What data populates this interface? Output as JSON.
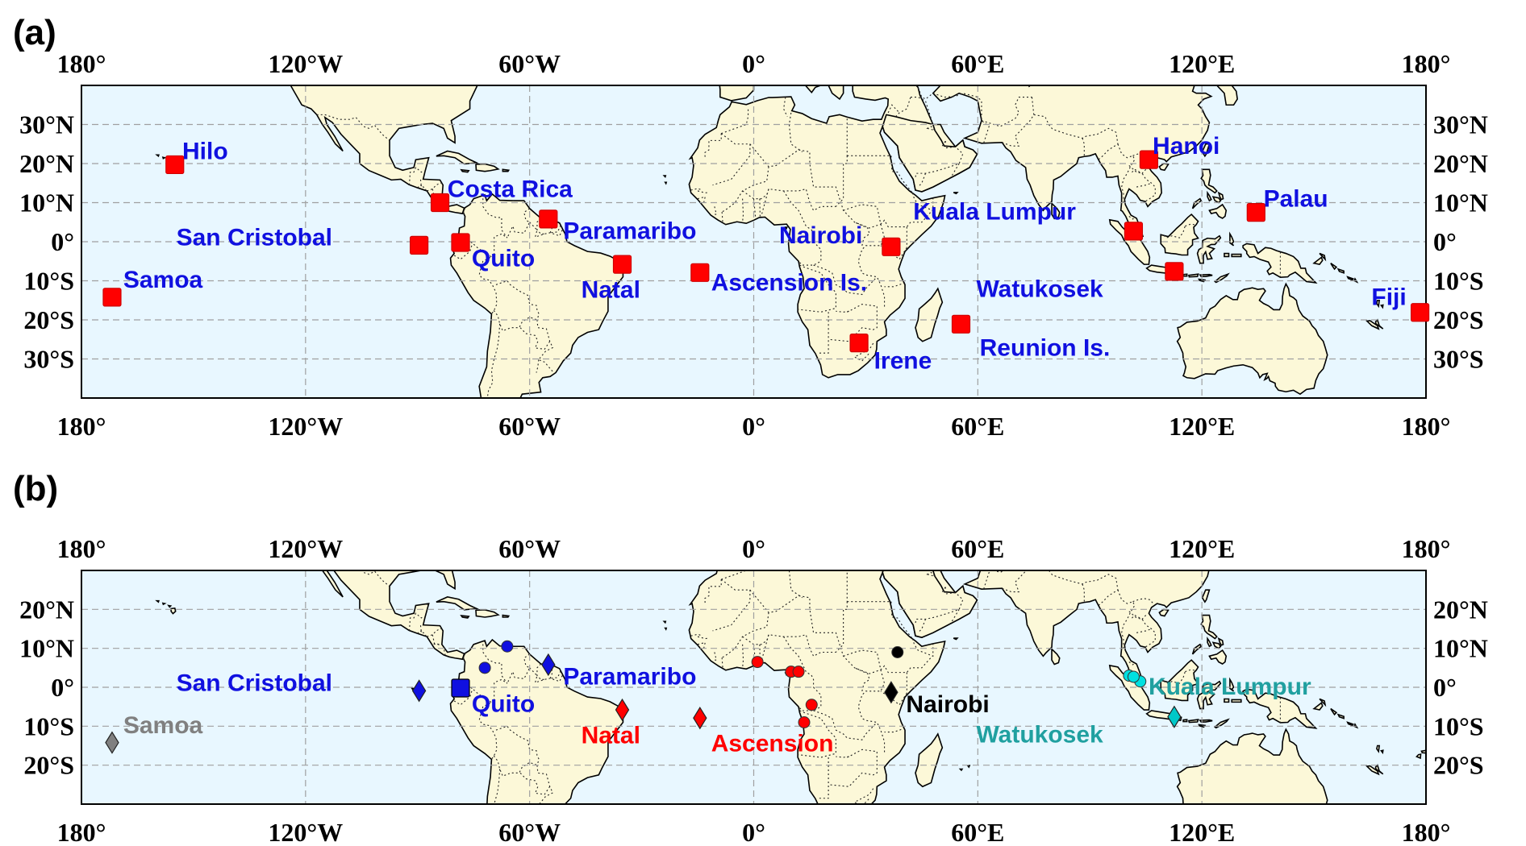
{
  "panels": [
    {
      "letter": "(a)",
      "lat_top": 40,
      "lat_bottom": -40,
      "x_ticks": [
        "180°",
        "120°W",
        "60°W",
        "0°",
        "60°E",
        "120°E",
        "180°"
      ],
      "y_ticks": [
        {
          "lat": 30,
          "label": "30°N"
        },
        {
          "lat": 20,
          "label": "20°N"
        },
        {
          "lat": 10,
          "label": "10°N"
        },
        {
          "lat": 0,
          "label": "0°"
        },
        {
          "lat": -10,
          "label": "10°S"
        },
        {
          "lat": -20,
          "label": "20°S"
        },
        {
          "lat": -30,
          "label": "30°S"
        }
      ],
      "stations": [
        {
          "name": "Hilo",
          "lon": -155,
          "lat": 19.7,
          "marker": "square",
          "color": "#ff0000",
          "label_color": "#1010e0",
          "label_dlon": 2,
          "label_dlat": 3.5
        },
        {
          "name": "Costa Rica",
          "lon": -84,
          "lat": 10,
          "marker": "square",
          "color": "#ff0000",
          "label_color": "#1010e0",
          "label_dlon": 2,
          "label_dlat": 3.5
        },
        {
          "name": "San Cristobal",
          "lon": -89.6,
          "lat": -0.9,
          "marker": "square",
          "color": "#ff0000",
          "label_color": "#1010e0",
          "label_dlon": -65,
          "label_dlat": 2
        },
        {
          "name": "Quito",
          "lon": -78.5,
          "lat": -0.2,
          "marker": "square",
          "color": "#ff0000",
          "label_color": "#1010e0",
          "label_dlon": 3,
          "label_dlat": -4
        },
        {
          "name": "Paramaribo",
          "lon": -55,
          "lat": 5.8,
          "marker": "square",
          "color": "#ff0000",
          "label_color": "#1010e0",
          "label_dlon": 4,
          "label_dlat": -3
        },
        {
          "name": "Samoa",
          "lon": -171.8,
          "lat": -14.2,
          "marker": "square",
          "color": "#ff0000",
          "label_color": "#1010e0",
          "label_dlon": 3,
          "label_dlat": 4.5
        },
        {
          "name": "Natal",
          "lon": -35.2,
          "lat": -5.8,
          "marker": "square",
          "color": "#ff0000",
          "label_color": "#1010e0",
          "label_dlon": -11,
          "label_dlat": -6.5
        },
        {
          "name": "Ascension Is.",
          "lon": -14.4,
          "lat": -7.9,
          "marker": "square",
          "color": "#ff0000",
          "label_color": "#1010e0",
          "label_dlon": 3,
          "label_dlat": -2.5
        },
        {
          "name": "Nairobi",
          "lon": 36.8,
          "lat": -1.3,
          "marker": "square",
          "color": "#ff0000",
          "label_color": "#1010e0",
          "label_dlon": -30,
          "label_dlat": 3
        },
        {
          "name": "Irene",
          "lon": 28.2,
          "lat": -25.9,
          "marker": "square",
          "color": "#ff0000",
          "label_color": "#1010e0",
          "label_dlon": 4,
          "label_dlat": -4.5
        },
        {
          "name": "Reunion Is.",
          "lon": 55.5,
          "lat": -21.1,
          "marker": "square",
          "color": "#ff0000",
          "label_color": "#1010e0",
          "label_dlon": 5,
          "label_dlat": -6
        },
        {
          "name": "Watukosek",
          "lon": 112.6,
          "lat": -7.6,
          "marker": "square",
          "color": "#ff0000",
          "label_color": "#1010e0",
          "label_dlon": -53,
          "label_dlat": -4.5
        },
        {
          "name": "Kuala Lumpur",
          "lon": 101.7,
          "lat": 2.7,
          "marker": "square",
          "color": "#ff0000",
          "label_color": "#1010e0",
          "label_dlon": -59,
          "label_dlat": 5
        },
        {
          "name": "Hanoi",
          "lon": 105.8,
          "lat": 21,
          "marker": "square",
          "color": "#ff0000",
          "label_color": "#1010e0",
          "label_dlon": 1,
          "label_dlat": 3.5
        },
        {
          "name": "Palau",
          "lon": 134.5,
          "lat": 7.5,
          "marker": "square",
          "color": "#ff0000",
          "label_color": "#1010e0",
          "label_dlon": 2,
          "label_dlat": 3.5
        },
        {
          "name": "Fiji",
          "lon": 178.4,
          "lat": -18.1,
          "marker": "square",
          "color": "#ff0000",
          "label_color": "#1010e0",
          "label_dlon": -13,
          "label_dlat": 4
        }
      ]
    },
    {
      "letter": "(b)",
      "lat_top": 30,
      "lat_bottom": -30,
      "x_ticks": [
        "180°",
        "120°W",
        "60°W",
        "0°",
        "60°E",
        "120°E",
        "180°"
      ],
      "y_ticks": [
        {
          "lat": 20,
          "label": "20°N"
        },
        {
          "lat": 10,
          "label": "10°N"
        },
        {
          "lat": 0,
          "label": "0°"
        },
        {
          "lat": -10,
          "label": "10°S"
        },
        {
          "lat": -20,
          "label": "20°S"
        }
      ],
      "stations": [
        {
          "name": "San Cristobal",
          "lon": -89.6,
          "lat": -0.9,
          "marker": "diamond",
          "color": "#1010e0",
          "label_color": "#1010e0",
          "label_dlon": -65,
          "label_dlat": 2
        },
        {
          "name": "Quito",
          "lon": -78.5,
          "lat": -0.2,
          "marker": "square",
          "color": "#1010e0",
          "label_color": "#1010e0",
          "label_dlon": 3,
          "label_dlat": -4
        },
        {
          "name": "Paramaribo",
          "lon": -55,
          "lat": 5.8,
          "marker": "diamond",
          "color": "#1010e0",
          "label_color": "#1010e0",
          "label_dlon": 4,
          "label_dlat": -3
        },
        {
          "name": "Samoa",
          "lon": -171.8,
          "lat": -14.2,
          "marker": "diamond",
          "color": "#808080",
          "label_color": "#808080",
          "label_dlon": 3,
          "label_dlat": 4.5
        },
        {
          "name": "Natal",
          "lon": -35.2,
          "lat": -5.8,
          "marker": "diamond",
          "color": "#ff0000",
          "label_color": "#ff0000",
          "label_dlon": -11,
          "label_dlat": -6.5
        },
        {
          "name": "Ascension",
          "lon": -14.4,
          "lat": -7.9,
          "marker": "diamond",
          "color": "#ff0000",
          "label_color": "#ff0000",
          "label_dlon": 3,
          "label_dlat": -6.5
        },
        {
          "name": "Nairobi",
          "lon": 36.8,
          "lat": -1.3,
          "marker": "diamond",
          "color": "#000000",
          "label_color": "#000000",
          "label_dlon": 4,
          "label_dlat": -3
        },
        {
          "name": "Watukosek",
          "lon": 112.6,
          "lat": -7.6,
          "marker": "diamond",
          "color": "#00c8c8",
          "label_color": "#20a0a0",
          "label_dlon": -53,
          "label_dlat": -4.5
        },
        {
          "name": "Kuala Lumpur",
          "lon": 101.7,
          "lat": 2.7,
          "marker": "circle",
          "color": "#00e0e0",
          "label_color": "#20a0a0",
          "label_dlon": 4,
          "label_dlat": -2.5
        }
      ],
      "extra_points": [
        {
          "lon": -72,
          "lat": 5,
          "color": "#1010e0"
        },
        {
          "lon": -66,
          "lat": 10.5,
          "color": "#1010e0"
        },
        {
          "lon": 1,
          "lat": 6.5,
          "color": "#ff0000"
        },
        {
          "lon": 10,
          "lat": 4,
          "color": "#ff0000"
        },
        {
          "lon": 12,
          "lat": 4,
          "color": "#ff0000"
        },
        {
          "lon": 15.5,
          "lat": -4.5,
          "color": "#ff0000"
        },
        {
          "lon": 13.5,
          "lat": -9,
          "color": "#ff0000"
        },
        {
          "lon": 38.5,
          "lat": 9,
          "color": "#000000"
        },
        {
          "lon": 100.5,
          "lat": 3,
          "color": "#00e0e0"
        },
        {
          "lon": 103.5,
          "lat": 1.5,
          "color": "#00e0e0"
        }
      ]
    }
  ],
  "colors": {
    "ocean": "#e8f7ff",
    "land": "#fcf8d8",
    "coast": "#000000",
    "grid": "#a0a0a0"
  }
}
